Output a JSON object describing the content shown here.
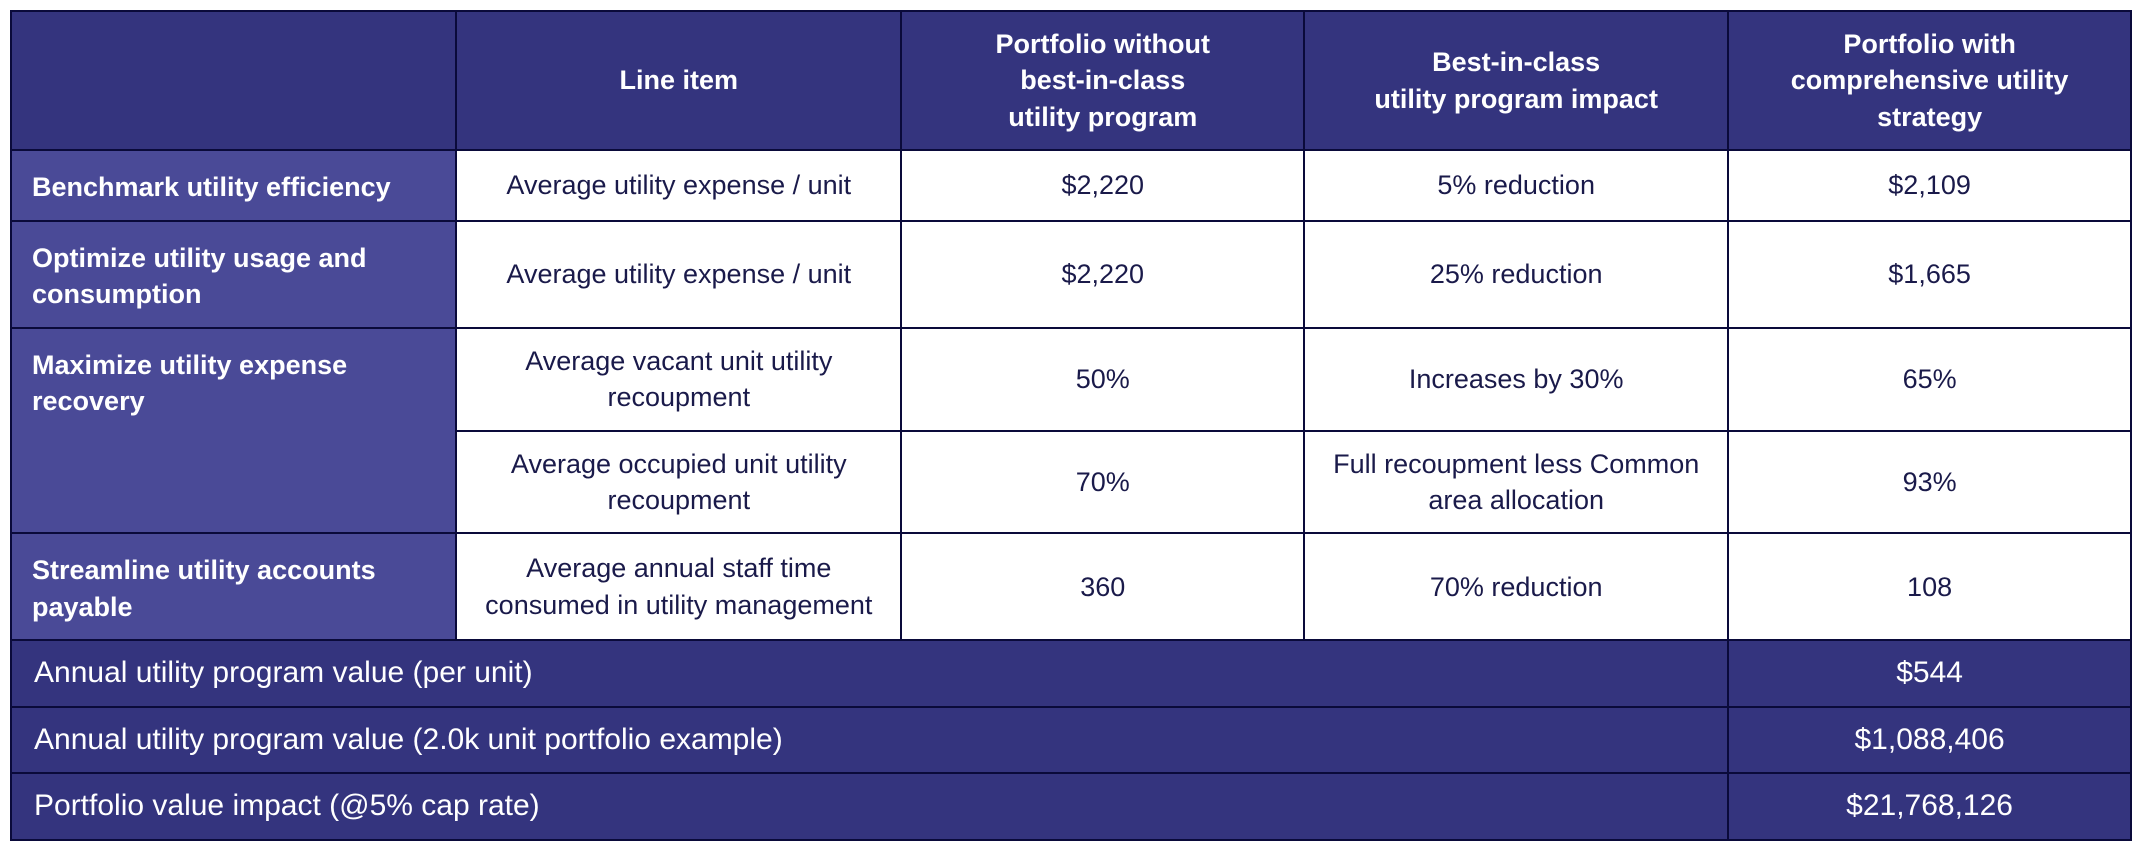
{
  "colors": {
    "header_bg": "#34347e",
    "rowlabel_bg": "#4a4a97",
    "cell_bg": "#ffffff",
    "border": "#0a0a3a",
    "header_text": "#ffffff",
    "cell_text": "#1a1a4a"
  },
  "columns": {
    "c0": "",
    "c1": "Line item",
    "c2": "Portfolio without\nbest-in-class\nutility program",
    "c3": "Best-in-class\nutility program impact",
    "c4": "Portfolio with\ncomprehensive utility\nstrategy"
  },
  "rows": [
    {
      "label": "Benchmark utility efficiency",
      "line_item": "Average utility expense / unit",
      "without": "$2,220",
      "impact": "5% reduction",
      "with": "$2,109"
    },
    {
      "label": "Optimize utility usage and consumption",
      "line_item": "Average utility expense / unit",
      "without": "$2,220",
      "impact": "25% reduction",
      "with": "$1,665"
    },
    {
      "label": "Maximize utility expense recovery",
      "line_item": "Average vacant unit utility recoupment",
      "without": "50%",
      "impact": "Increases by 30%",
      "with": "65%"
    },
    {
      "label": "",
      "line_item": "Average occupied unit utility recoupment",
      "without": "70%",
      "impact": "Full recoupment less Common area allocation",
      "with": "93%"
    },
    {
      "label": "Streamline utility accounts payable",
      "line_item": "Average annual staff time consumed in utility management",
      "without": "360",
      "impact": "70% reduction",
      "with": "108"
    }
  ],
  "summary": [
    {
      "label": "Annual utility program value (per unit)",
      "value": "$544"
    },
    {
      "label": "Annual utility program value (2.0k unit portfolio example)",
      "value": "$1,088,406"
    },
    {
      "label": "Portfolio value impact (@5% cap rate)",
      "value": "$21,768,126"
    }
  ]
}
